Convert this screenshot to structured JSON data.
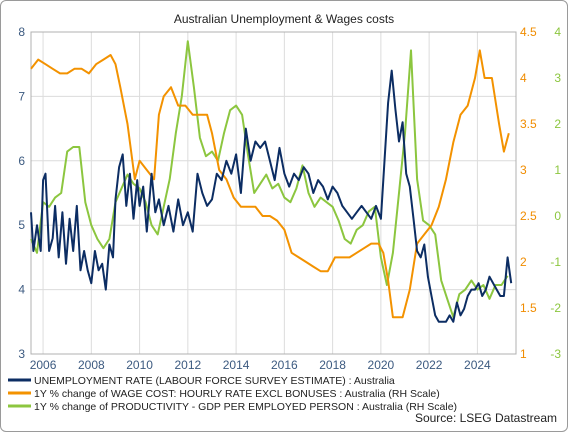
{
  "chart_data": {
    "type": "line",
    "title": "Australian Unemployment & Wages costs",
    "source": "Source: LSEG Datastream",
    "x_ticks": [
      "2006",
      "2008",
      "2010",
      "2012",
      "2014",
      "2016",
      "2018",
      "2020",
      "2022",
      "2024"
    ],
    "xlim": [
      2005.5,
      2025.6
    ],
    "axes": {
      "left": {
        "ylim": [
          3,
          8
        ],
        "ticks": [
          "3",
          "4",
          "5",
          "6",
          "7",
          "8"
        ],
        "color": "#3c5a80"
      },
      "right1": {
        "ylim": [
          1,
          4.5
        ],
        "ticks": [
          "1",
          "1.5",
          "2",
          "2.5",
          "3",
          "3.5",
          "4",
          "4.5"
        ],
        "color": "#f08c00"
      },
      "right2": {
        "ylim": [
          -3,
          4
        ],
        "ticks": [
          "-3",
          "-2",
          "-1",
          "0",
          "1",
          "2",
          "3",
          "4"
        ],
        "color": "#8cc63f"
      }
    },
    "grid": true,
    "series": [
      {
        "name": "UNEMPLOYMENT RATE (LABOUR FORCE SURVEY ESTIMATE) : Australia",
        "axis": "left",
        "color": "#0c2d63",
        "x": [
          2005.5,
          2005.6,
          2005.75,
          2005.9,
          2006.0,
          2006.1,
          2006.25,
          2006.4,
          2006.5,
          2006.65,
          2006.8,
          2006.95,
          2007.1,
          2007.25,
          2007.4,
          2007.55,
          2007.7,
          2007.85,
          2008.0,
          2008.15,
          2008.3,
          2008.45,
          2008.6,
          2008.75,
          2008.9,
          2009.0,
          2009.15,
          2009.3,
          2009.45,
          2009.6,
          2009.75,
          2009.9,
          2010.0,
          2010.15,
          2010.3,
          2010.5,
          2010.65,
          2010.8,
          2011.0,
          2011.2,
          2011.4,
          2011.6,
          2011.8,
          2012.0,
          2012.2,
          2012.4,
          2012.6,
          2012.8,
          2013.0,
          2013.2,
          2013.4,
          2013.6,
          2013.8,
          2014.0,
          2014.2,
          2014.4,
          2014.6,
          2014.8,
          2015.0,
          2015.2,
          2015.4,
          2015.6,
          2015.8,
          2016.0,
          2016.2,
          2016.4,
          2016.6,
          2016.8,
          2017.0,
          2017.2,
          2017.4,
          2017.6,
          2017.8,
          2018.0,
          2018.2,
          2018.4,
          2018.6,
          2018.8,
          2019.0,
          2019.2,
          2019.4,
          2019.6,
          2019.8,
          2020.0,
          2020.15,
          2020.3,
          2020.45,
          2020.6,
          2020.75,
          2020.9,
          2021.05,
          2021.2,
          2021.35,
          2021.5,
          2021.65,
          2021.8,
          2021.95,
          2022.1,
          2022.25,
          2022.4,
          2022.55,
          2022.7,
          2022.85,
          2023.0,
          2023.15,
          2023.3,
          2023.45,
          2023.6,
          2023.75,
          2023.9,
          2024.05,
          2024.2,
          2024.35,
          2024.5,
          2024.65,
          2024.8,
          2024.95,
          2025.1,
          2025.25,
          2025.4
        ],
        "y": [
          5.2,
          4.6,
          5.0,
          4.6,
          5.7,
          5.8,
          4.6,
          4.8,
          5.3,
          4.5,
          5.2,
          4.4,
          5.1,
          4.6,
          5.3,
          4.3,
          4.6,
          4.3,
          4.1,
          4.6,
          4.3,
          4.4,
          4.0,
          4.7,
          4.5,
          5.4,
          5.9,
          6.1,
          5.3,
          5.8,
          5.1,
          5.7,
          5.3,
          5.6,
          4.9,
          5.8,
          5.2,
          5.4,
          5.0,
          5.3,
          4.9,
          5.4,
          5.0,
          5.2,
          4.9,
          5.8,
          5.5,
          5.3,
          5.4,
          5.8,
          5.7,
          6.0,
          5.8,
          6.1,
          5.5,
          6.5,
          6.0,
          6.3,
          6.2,
          6.3,
          6.0,
          5.7,
          6.2,
          5.8,
          5.6,
          5.8,
          5.7,
          5.9,
          5.8,
          5.5,
          5.7,
          5.6,
          5.4,
          5.6,
          5.5,
          5.3,
          5.2,
          5.1,
          5.2,
          5.3,
          5.2,
          5.1,
          5.3,
          5.1,
          6.0,
          6.9,
          7.4,
          6.8,
          6.3,
          6.6,
          5.8,
          5.6,
          5.1,
          4.6,
          4.5,
          4.7,
          4.2,
          3.9,
          3.6,
          3.5,
          3.5,
          3.5,
          3.6,
          3.5,
          3.8,
          3.6,
          3.7,
          3.9,
          4.0,
          4.0,
          4.1,
          3.9,
          4.0,
          4.2,
          4.1,
          4.0,
          3.9,
          3.9,
          4.5,
          4.1
        ],
        "label_key": "legend.0"
      },
      {
        "name": "1Y % change of WAGE COST: HOURLY RATE EXCL BONUSES : Australia (RH Scale)",
        "axis": "right1",
        "color": "#f39200",
        "x": [
          2005.5,
          2005.8,
          2006.1,
          2006.4,
          2006.7,
          2007.0,
          2007.3,
          2007.6,
          2007.9,
          2008.2,
          2008.5,
          2008.8,
          2009.0,
          2009.2,
          2009.5,
          2009.8,
          2010.0,
          2010.3,
          2010.6,
          2010.8,
          2011.0,
          2011.3,
          2011.6,
          2011.9,
          2012.2,
          2012.5,
          2012.8,
          2013.0,
          2013.3,
          2013.6,
          2013.9,
          2014.2,
          2014.5,
          2014.8,
          2015.1,
          2015.4,
          2015.7,
          2016.0,
          2016.3,
          2016.6,
          2016.9,
          2017.2,
          2017.5,
          2017.8,
          2018.1,
          2018.4,
          2018.7,
          2019.0,
          2019.3,
          2019.6,
          2019.9,
          2020.1,
          2020.3,
          2020.5,
          2020.7,
          2020.9,
          2021.2,
          2021.5,
          2021.8,
          2022.1,
          2022.4,
          2022.7,
          2023.0,
          2023.3,
          2023.6,
          2023.9,
          2024.1,
          2024.3,
          2024.6,
          2024.9,
          2025.1,
          2025.3
        ],
        "y": [
          4.1,
          4.2,
          4.15,
          4.1,
          4.05,
          4.05,
          4.1,
          4.1,
          4.05,
          4.15,
          4.2,
          4.25,
          4.15,
          3.9,
          3.5,
          2.9,
          3.1,
          3.0,
          2.9,
          3.6,
          3.8,
          3.9,
          3.7,
          3.7,
          3.6,
          3.6,
          3.6,
          3.4,
          3.0,
          2.9,
          2.7,
          2.6,
          2.6,
          2.6,
          2.5,
          2.5,
          2.45,
          2.35,
          2.1,
          2.05,
          2.0,
          1.95,
          1.9,
          1.9,
          2.05,
          2.05,
          2.05,
          2.1,
          2.15,
          2.2,
          2.2,
          2.1,
          1.8,
          1.4,
          1.4,
          1.4,
          1.7,
          2.2,
          2.3,
          2.4,
          2.6,
          2.9,
          3.3,
          3.6,
          3.7,
          4.0,
          4.3,
          4.0,
          4.0,
          3.5,
          3.2,
          3.4
        ],
        "label_key": "legend.1"
      },
      {
        "name": "1Y % change of PRODUCTIVITY - GDP PER EMPLOYED PERSON : Australia (RH Scale)",
        "axis": "right2",
        "color": "#8cc63f",
        "x": [
          2005.5,
          2005.75,
          2006.0,
          2006.25,
          2006.5,
          2006.75,
          2007.0,
          2007.25,
          2007.5,
          2007.75,
          2008.0,
          2008.25,
          2008.5,
          2008.75,
          2009.0,
          2009.25,
          2009.5,
          2009.75,
          2010.0,
          2010.25,
          2010.5,
          2010.75,
          2011.0,
          2011.25,
          2011.5,
          2011.75,
          2012.0,
          2012.25,
          2012.5,
          2012.75,
          2013.0,
          2013.25,
          2013.5,
          2013.75,
          2014.0,
          2014.25,
          2014.5,
          2014.75,
          2015.0,
          2015.25,
          2015.5,
          2015.75,
          2016.0,
          2016.25,
          2016.5,
          2016.75,
          2017.0,
          2017.25,
          2017.5,
          2017.75,
          2018.0,
          2018.25,
          2018.5,
          2018.75,
          2019.0,
          2019.25,
          2019.5,
          2019.75,
          2020.0,
          2020.25,
          2020.5,
          2020.75,
          2021.0,
          2021.25,
          2021.5,
          2021.75,
          2022.0,
          2022.25,
          2022.5,
          2022.75,
          2023.0,
          2023.25,
          2023.5,
          2023.75,
          2024.0,
          2024.25,
          2024.5,
          2024.75,
          2025.0,
          2025.25
        ],
        "y": [
          -0.5,
          -0.8,
          0.3,
          0.2,
          0.4,
          0.5,
          1.4,
          1.5,
          1.5,
          0.3,
          -0.2,
          -0.5,
          -0.7,
          -0.5,
          0.3,
          0.6,
          0.9,
          0.7,
          0.6,
          0.3,
          -0.2,
          -0.4,
          0.2,
          0.8,
          1.8,
          2.6,
          3.8,
          2.8,
          1.7,
          1.3,
          1.4,
          1.2,
          1.8,
          2.3,
          2.4,
          2.2,
          1.3,
          0.5,
          0.7,
          0.9,
          0.6,
          0.7,
          0.4,
          0.3,
          0.6,
          1.1,
          0.5,
          0.2,
          0.4,
          0.3,
          0.2,
          -0.1,
          -0.5,
          -0.6,
          -0.3,
          -0.2,
          0.1,
          0.2,
          -0.9,
          -1.5,
          -0.8,
          0.5,
          1.8,
          3.6,
          0.8,
          -0.1,
          -0.2,
          -0.4,
          -1.4,
          -1.8,
          -2.2,
          -1.7,
          -1.6,
          -1.4,
          -1.6,
          -1.5,
          -1.8,
          -1.5,
          -1.5,
          -1.3
        ],
        "label_key": "legend.2"
      }
    ]
  },
  "legend": [
    "UNEMPLOYMENT RATE (LABOUR FORCE SURVEY ESTIMATE) : Australia",
    "1Y % change of WAGE COST: HOURLY RATE EXCL BONUSES : Australia (RH Scale)",
    "1Y % change of PRODUCTIVITY - GDP PER EMPLOYED PERSON : Australia (RH Scale)"
  ]
}
